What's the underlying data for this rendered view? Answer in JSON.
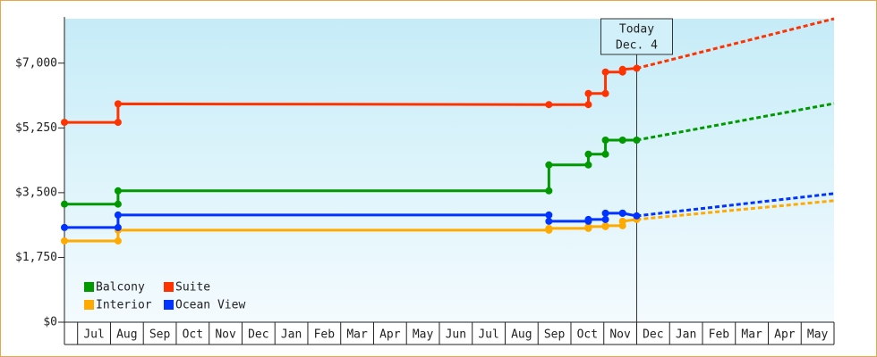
{
  "chart_data": {
    "type": "line",
    "xlim": [
      -0.4,
      23
    ],
    "ylim": [
      0,
      8200
    ],
    "yticks": [
      {
        "value": 0,
        "label": "$0"
      },
      {
        "value": 1750,
        "label": "$1,750"
      },
      {
        "value": 3500,
        "label": "$3,500"
      },
      {
        "value": 5250,
        "label": "$5,250"
      },
      {
        "value": 7000,
        "label": "$7,000"
      }
    ],
    "categories": [
      "Jul",
      "Aug",
      "Sep",
      "Oct",
      "Nov",
      "Dec",
      "Jan",
      "Feb",
      "Mar",
      "Apr",
      "May",
      "Jun",
      "Jul",
      "Aug",
      "Sep",
      "Oct",
      "Nov",
      "Dec",
      "Jan",
      "Feb",
      "Mar",
      "Apr",
      "May"
    ],
    "annotation": {
      "text": [
        "Today",
        "Dec. 4"
      ],
      "x": 17.0
    },
    "series": [
      {
        "name": "Balcony",
        "color": "#009900",
        "x": [
          -0.4,
          1.23,
          1.23,
          14.33,
          14.33,
          15.53,
          15.53,
          16.05,
          16.05,
          16.57,
          17.0
        ],
        "values": [
          3190,
          3190,
          3550,
          3550,
          4250,
          4250,
          4540,
          4540,
          4920,
          4920,
          4920
        ],
        "forecast": {
          "x": [
            17.0,
            23
          ],
          "values": [
            4920,
            5910
          ]
        }
      },
      {
        "name": "Suite",
        "color": "#ff3300",
        "x": [
          -0.4,
          1.23,
          1.23,
          14.33,
          15.53,
          15.53,
          16.05,
          16.05,
          16.57,
          16.57,
          17.0
        ],
        "values": [
          5400,
          5400,
          5900,
          5880,
          5880,
          6180,
          6180,
          6760,
          6760,
          6830,
          6860
        ],
        "forecast": {
          "x": [
            17.0,
            23
          ],
          "values": [
            6860,
            8200
          ]
        }
      },
      {
        "name": "Interior",
        "color": "#ffaa00",
        "x": [
          -0.4,
          1.23,
          1.23,
          14.33,
          14.33,
          15.53,
          15.53,
          16.05,
          16.05,
          16.57,
          16.57,
          17.0
        ],
        "values": [
          2196,
          2196,
          2486,
          2486,
          2534,
          2534,
          2583,
          2583,
          2607,
          2607,
          2727,
          2776
        ],
        "forecast": {
          "x": [
            17.0,
            23
          ],
          "values": [
            2776,
            3283
          ]
        }
      },
      {
        "name": "Ocean View",
        "color": "#0033ff",
        "x": [
          -0.4,
          1.23,
          1.23,
          14.33,
          14.33,
          15.53,
          15.53,
          16.05,
          16.05,
          16.57,
          16.57,
          17.0
        ],
        "values": [
          2558,
          2558,
          2896,
          2896,
          2727,
          2727,
          2776,
          2776,
          2945,
          2945,
          2945,
          2872
        ],
        "forecast": {
          "x": [
            17.0,
            23
          ],
          "values": [
            2872,
            3476
          ]
        }
      }
    ],
    "legend": "lower left"
  }
}
